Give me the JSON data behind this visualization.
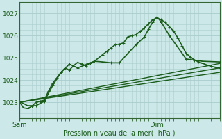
{
  "bg_color": "#cce8e8",
  "grid_color": "#aacccc",
  "line_color": "#1a5c1a",
  "axis_color": "#336633",
  "xlabel": "Pression niveau de la mer(  hPa )",
  "ylabel_ticks": [
    1023,
    1024,
    1025,
    1026,
    1027
  ],
  "xlim": [
    0,
    48
  ],
  "ylim": [
    1022.3,
    1027.5
  ],
  "sam_x": 0,
  "dim_x": 33,
  "series": [
    {
      "x": [
        0,
        1,
        2,
        3,
        4,
        5,
        6,
        7,
        8,
        9,
        10,
        11,
        12,
        13,
        14,
        15,
        16,
        17,
        18,
        19,
        20,
        21,
        22,
        23,
        24,
        25,
        26,
        27,
        28,
        29,
        30,
        31,
        32,
        33,
        34,
        35,
        36,
        37,
        38,
        39,
        40,
        41,
        42,
        43,
        44,
        45,
        46,
        47,
        48
      ],
      "y": [
        1023.05,
        1022.75,
        1022.72,
        1022.82,
        1023.0,
        1023.05,
        1023.1,
        1023.5,
        1023.85,
        1024.1,
        1024.35,
        1024.55,
        1024.45,
        1024.65,
        1024.8,
        1024.72,
        1024.65,
        1024.75,
        1024.85,
        1025.0,
        1025.15,
        1025.3,
        1025.45,
        1025.6,
        1025.62,
        1025.68,
        1025.95,
        1026.0,
        1026.05,
        1026.2,
        1026.35,
        1026.55,
        1026.72,
        1026.8,
        1026.72,
        1026.6,
        1026.4,
        1026.2,
        1025.9,
        1025.55,
        1025.2,
        1025.05,
        1024.9,
        1024.82,
        1024.75,
        1024.68,
        1024.62,
        1024.58,
        1024.55
      ],
      "marker": true,
      "lw": 1.2
    },
    {
      "x": [
        0,
        2,
        4,
        6,
        8,
        10,
        12,
        14,
        16,
        18,
        20,
        22,
        24,
        26,
        28,
        30,
        31,
        32,
        33,
        34,
        36,
        40,
        44,
        48
      ],
      "y": [
        1023.05,
        1022.85,
        1022.85,
        1023.05,
        1023.75,
        1024.35,
        1024.72,
        1024.55,
        1024.7,
        1024.85,
        1024.82,
        1024.78,
        1024.78,
        1025.2,
        1025.6,
        1025.95,
        1026.3,
        1026.62,
        1026.85,
        1026.62,
        1026.0,
        1024.95,
        1024.85,
        1024.82
      ],
      "marker": true,
      "lw": 1.2
    },
    {
      "x": [
        0,
        48
      ],
      "y": [
        1023.0,
        1024.75
      ],
      "marker": false,
      "lw": 1.0
    },
    {
      "x": [
        0,
        48
      ],
      "y": [
        1023.0,
        1024.55
      ],
      "marker": false,
      "lw": 1.0
    },
    {
      "x": [
        0,
        48
      ],
      "y": [
        1023.0,
        1024.35
      ],
      "marker": false,
      "lw": 1.0
    }
  ]
}
